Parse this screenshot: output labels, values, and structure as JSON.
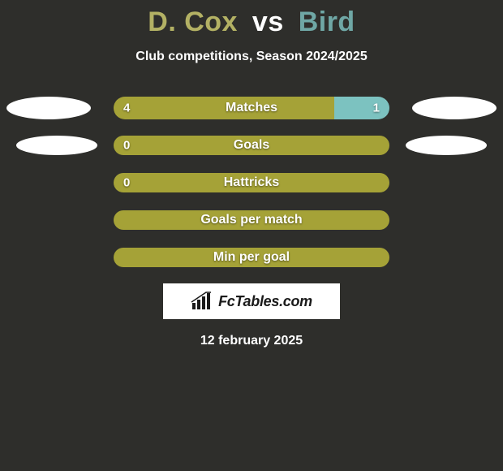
{
  "title": {
    "player1": "D. Cox",
    "vs": "vs",
    "player2": "Bird"
  },
  "subtitle": "Club competitions, Season 2024/2025",
  "colors": {
    "player1": "#a5a237",
    "player2": "#7cc2c0",
    "title_p1": "#b3b164",
    "title_p2": "#6fa7a5",
    "bar_bg": "#a5a237"
  },
  "stats": [
    {
      "label": "Matches",
      "left_val": "4",
      "right_val": "1",
      "left_pct": 80,
      "right_pct": 20,
      "left_color": "#a5a237",
      "right_color": "#7cc2c0",
      "show_left_avatar": true,
      "show_right_avatar": true,
      "avatar_size": "big",
      "height": "full"
    },
    {
      "label": "Goals",
      "left_val": "0",
      "right_val": "",
      "left_pct": 100,
      "right_pct": 0,
      "left_color": "#a5a237",
      "right_color": "#7cc2c0",
      "show_left_avatar": true,
      "show_right_avatar": true,
      "avatar_size": "small",
      "height": "narrow"
    },
    {
      "label": "Hattricks",
      "left_val": "0",
      "right_val": "",
      "left_pct": 100,
      "right_pct": 0,
      "left_color": "#a5a237",
      "right_color": "#7cc2c0",
      "show_left_avatar": false,
      "show_right_avatar": false,
      "avatar_size": "small",
      "height": "narrow"
    },
    {
      "label": "Goals per match",
      "left_val": "",
      "right_val": "",
      "left_pct": 100,
      "right_pct": 0,
      "left_color": "#a5a237",
      "right_color": "#7cc2c0",
      "show_left_avatar": false,
      "show_right_avatar": false,
      "avatar_size": "small",
      "height": "narrow"
    },
    {
      "label": "Min per goal",
      "left_val": "",
      "right_val": "",
      "left_pct": 100,
      "right_pct": 0,
      "left_color": "#a5a237",
      "right_color": "#7cc2c0",
      "show_left_avatar": false,
      "show_right_avatar": false,
      "avatar_size": "small",
      "height": "narrow"
    }
  ],
  "brand": "FcTables.com",
  "date": "12 february 2025"
}
